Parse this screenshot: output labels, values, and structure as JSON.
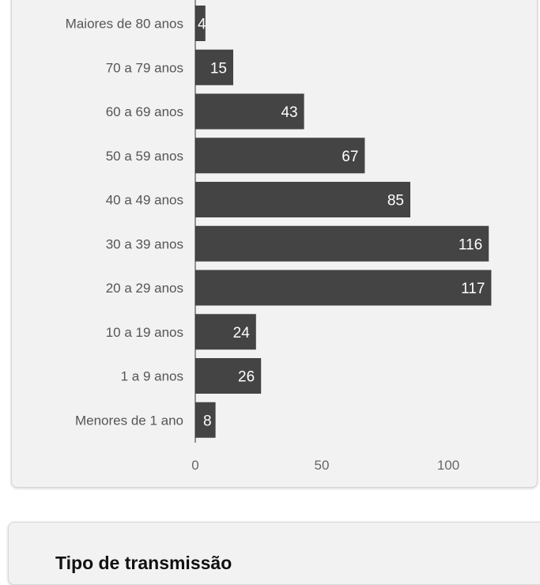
{
  "chart_data": {
    "type": "bar",
    "orientation": "horizontal",
    "categories": [
      "Maiores de 80 anos",
      "70 a 79 anos",
      "60 a 69 anos",
      "50 a 59 anos",
      "40 a 49 anos",
      "30 a 39 anos",
      "20 a 29 anos",
      "10 a 19 anos",
      "1 a 9 anos",
      "Menores de 1 ano"
    ],
    "values": [
      4,
      15,
      43,
      67,
      85,
      116,
      117,
      24,
      26,
      8
    ],
    "xticks": [
      0,
      50,
      100
    ],
    "xlim": [
      0,
      137
    ],
    "bar_color": "#444444"
  },
  "next_card": {
    "title": "Tipo de transmissão"
  }
}
